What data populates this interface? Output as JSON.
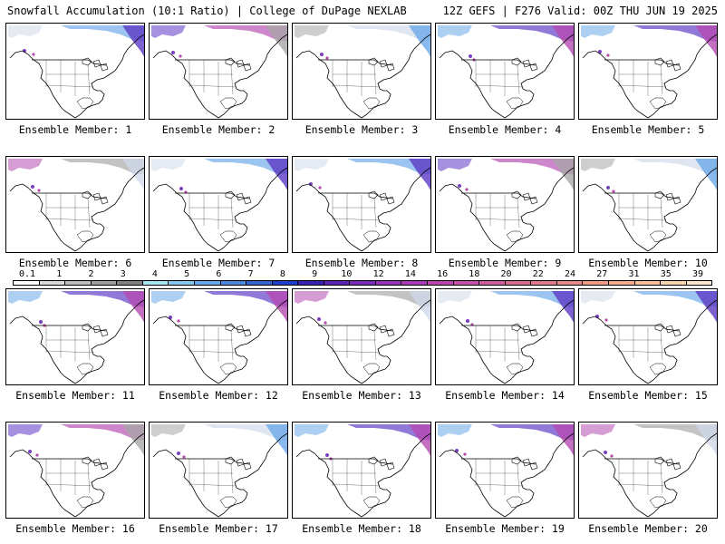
{
  "header": {
    "left": "Snowfall Accumulation (10:1 Ratio) | College of DuPage NEXLAB",
    "right": "12Z GEFS | F276 Valid: 00Z THU JUN 19 2025"
  },
  "colorbar": {
    "labels": [
      "0.1",
      "1",
      "2",
      "3",
      "4",
      "5",
      "6",
      "7",
      "8",
      "9",
      "10",
      "12",
      "14",
      "16",
      "18",
      "20",
      "22",
      "24",
      "27",
      "31",
      "35",
      "39"
    ],
    "colors": [
      "#ffffff",
      "#d9d9d9",
      "#bcbcbc",
      "#9e9e9e",
      "#808080",
      "#a9e3f0",
      "#88c6ec",
      "#6ba6e6",
      "#4f85dc",
      "#3464d2",
      "#1f40c4",
      "#3a1fb0",
      "#5a22b5",
      "#7a2ab8",
      "#9233b8",
      "#a63cb4",
      "#b845ae",
      "#c64ea6",
      "#cf5c9d",
      "#d56b94",
      "#dd7a8c",
      "#e48a87",
      "#eb9b86",
      "#f1ad8b",
      "#f5c09a",
      "#f8d3b0",
      "#fbe6ce"
    ]
  },
  "members": [
    {
      "label": "Ensemble Member: 1"
    },
    {
      "label": "Ensemble Member: 2"
    },
    {
      "label": "Ensemble Member: 3"
    },
    {
      "label": "Ensemble Member: 4"
    },
    {
      "label": "Ensemble Member: 5"
    },
    {
      "label": "Ensemble Member: 6"
    },
    {
      "label": "Ensemble Member: 7"
    },
    {
      "label": "Ensemble Member: 8"
    },
    {
      "label": "Ensemble Member: 9"
    },
    {
      "label": "Ensemble Member: 10"
    },
    {
      "label": "Ensemble Member: 11"
    },
    {
      "label": "Ensemble Member: 12"
    },
    {
      "label": "Ensemble Member: 13"
    },
    {
      "label": "Ensemble Member: 14"
    },
    {
      "label": "Ensemble Member: 15"
    },
    {
      "label": "Ensemble Member: 16"
    },
    {
      "label": "Ensemble Member: 17"
    },
    {
      "label": "Ensemble Member: 18"
    },
    {
      "label": "Ensemble Member: 19"
    },
    {
      "label": "Ensemble Member: 20"
    }
  ]
}
